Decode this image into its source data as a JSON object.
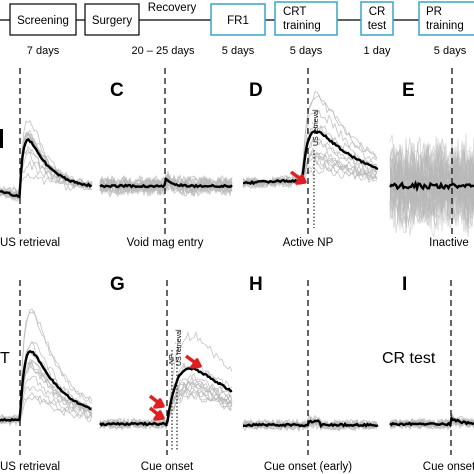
{
  "timeline": {
    "stages": [
      {
        "label": "Screening",
        "boxed": true,
        "highlight": false
      },
      {
        "label": "Surgery",
        "boxed": true,
        "highlight": false
      },
      {
        "label": "Recovery",
        "boxed": false,
        "highlight": false
      },
      {
        "label": "FR1",
        "boxed": true,
        "highlight": true
      },
      {
        "label_lines": [
          "CRT",
          "training"
        ],
        "boxed": true,
        "highlight": true
      },
      {
        "label_lines": [
          "CR",
          "test"
        ],
        "boxed": true,
        "highlight": true
      },
      {
        "label_lines": [
          "PR",
          "training"
        ],
        "boxed": true,
        "highlight": true
      }
    ],
    "durations": [
      "7 days",
      "20 – 25 days",
      "5 days",
      "5 days",
      "1 day",
      "5 days"
    ],
    "colors": {
      "line": "#000000",
      "highlight_box": "#3aa3c9"
    }
  },
  "panels": [
    {
      "id": "B",
      "letter": "",
      "xlabel": "US retrieval",
      "row": 1
    },
    {
      "id": "C",
      "letter": "C",
      "xlabel": "Void mag entry",
      "row": 1
    },
    {
      "id": "D",
      "letter": "D",
      "xlabel": "Active NP",
      "row": 1,
      "marker": "US retrieval"
    },
    {
      "id": "E",
      "letter": "E",
      "xlabel": "Inactive",
      "row": 1
    },
    {
      "id": "F",
      "letter": "",
      "xlabel": "US retrieval",
      "row": 2,
      "note": "T"
    },
    {
      "id": "G",
      "letter": "G",
      "xlabel": "Cue onset",
      "row": 2,
      "markers": [
        "NP",
        "US retrieval"
      ]
    },
    {
      "id": "H",
      "letter": "H",
      "xlabel": "Cue onset (early)",
      "row": 2
    },
    {
      "id": "I",
      "letter": "I",
      "xlabel": "Cue onset",
      "row": 2,
      "note": "CR test"
    }
  ],
  "colors": {
    "mean_trace": "#000000",
    "individual_trace": "#b8b8b8",
    "arrow": "#e02020",
    "event_line": "#000000"
  }
}
